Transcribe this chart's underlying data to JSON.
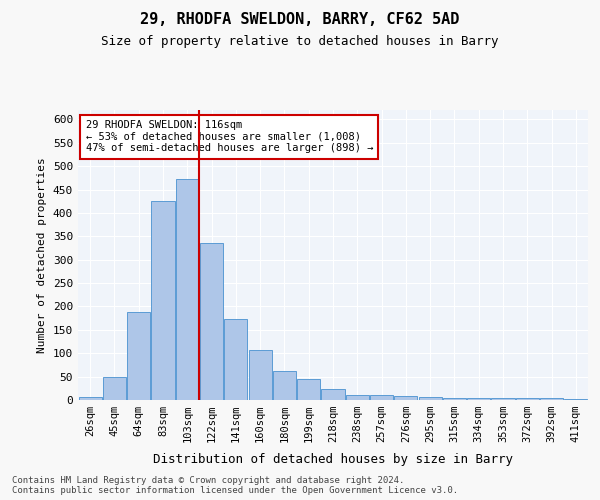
{
  "title1": "29, RHODFA SWELDON, BARRY, CF62 5AD",
  "title2": "Size of property relative to detached houses in Barry",
  "xlabel": "Distribution of detached houses by size in Barry",
  "ylabel": "Number of detached properties",
  "categories": [
    "26sqm",
    "45sqm",
    "64sqm",
    "83sqm",
    "103sqm",
    "122sqm",
    "141sqm",
    "160sqm",
    "180sqm",
    "199sqm",
    "218sqm",
    "238sqm",
    "257sqm",
    "276sqm",
    "295sqm",
    "315sqm",
    "334sqm",
    "353sqm",
    "372sqm",
    "392sqm",
    "411sqm"
  ],
  "values": [
    6,
    50,
    188,
    425,
    473,
    335,
    174,
    107,
    62,
    44,
    24,
    11,
    11,
    8,
    7,
    5,
    4,
    5,
    4,
    4,
    3
  ],
  "bar_color": "#aec6e8",
  "bar_edgecolor": "#5b9bd5",
  "redline_x": 4.5,
  "annotation_text": "29 RHODFA SWELDON: 116sqm\n← 53% of detached houses are smaller (1,008)\n47% of semi-detached houses are larger (898) →",
  "annotation_box_color": "#ffffff",
  "annotation_box_edgecolor": "#cc0000",
  "redline_color": "#cc0000",
  "ylim": [
    0,
    620
  ],
  "yticks": [
    0,
    50,
    100,
    150,
    200,
    250,
    300,
    350,
    400,
    450,
    500,
    550,
    600
  ],
  "footer": "Contains HM Land Registry data © Crown copyright and database right 2024.\nContains public sector information licensed under the Open Government Licence v3.0.",
  "bg_color": "#f0f4fa",
  "plot_bg_color": "#f0f4fa"
}
